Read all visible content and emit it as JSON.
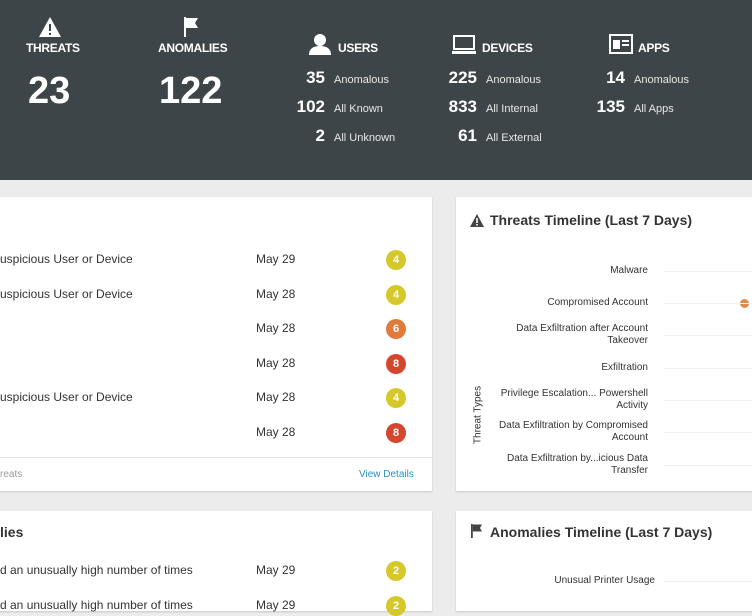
{
  "summary": {
    "threats": {
      "label": "THREATS",
      "value": "23"
    },
    "anomalies": {
      "label": "ANOMALIES",
      "value": "122"
    },
    "groups": [
      {
        "label": "USERS",
        "rows": [
          [
            "35",
            "Anomalous"
          ],
          [
            "102",
            "All Known"
          ],
          [
            "2",
            "All Unknown"
          ]
        ]
      },
      {
        "label": "DEVICES",
        "rows": [
          [
            "225",
            "Anomalous"
          ],
          [
            "833",
            "All Internal"
          ],
          [
            "61",
            "All External"
          ]
        ]
      },
      {
        "label": "APPS",
        "rows": [
          [
            "14",
            "Anomalous"
          ],
          [
            "135",
            "All Apps"
          ]
        ]
      }
    ]
  },
  "threats_list": {
    "rows": [
      {
        "text": "uspicious User or Device",
        "date": "May 29",
        "score": "4"
      },
      {
        "text": "uspicious User or Device",
        "date": "May 28",
        "score": "4"
      },
      {
        "text": "",
        "date": "May 28",
        "score": "6"
      },
      {
        "text": "",
        "date": "May 28",
        "score": "8"
      },
      {
        "text": "uspicious User or Device",
        "date": "May 28",
        "score": "4"
      },
      {
        "text": "",
        "date": "May 28",
        "score": "8"
      }
    ],
    "footer": "reats",
    "link": "View Details"
  },
  "threats_timeline": {
    "title": "Threats Timeline (Last 7 Days)",
    "axis_title": "Threat Types",
    "types": [
      [
        "Malware"
      ],
      [
        "Compromised Account"
      ],
      [
        "Data Exfiltration after Account",
        "Takeover"
      ],
      [
        "Exfiltration"
      ],
      [
        "Privilege Escalation... Powershell",
        "Activity"
      ],
      [
        "Data Exfiltration by Compromised",
        "Account"
      ],
      [
        "Data Exfiltration by...icious Data",
        "Transfer"
      ]
    ]
  },
  "anomalies_list": {
    "title": "lies",
    "rows": [
      {
        "text": "d an unusually high number of times",
        "date": "May 29",
        "score": "2"
      },
      {
        "text": "d an unusually high number of times",
        "date": "May 29",
        "score": "2"
      }
    ]
  },
  "anomalies_timeline": {
    "title": "Anomalies Timeline (Last 7 Days)",
    "types": [
      [
        "Unusual Printer Usage"
      ]
    ]
  }
}
